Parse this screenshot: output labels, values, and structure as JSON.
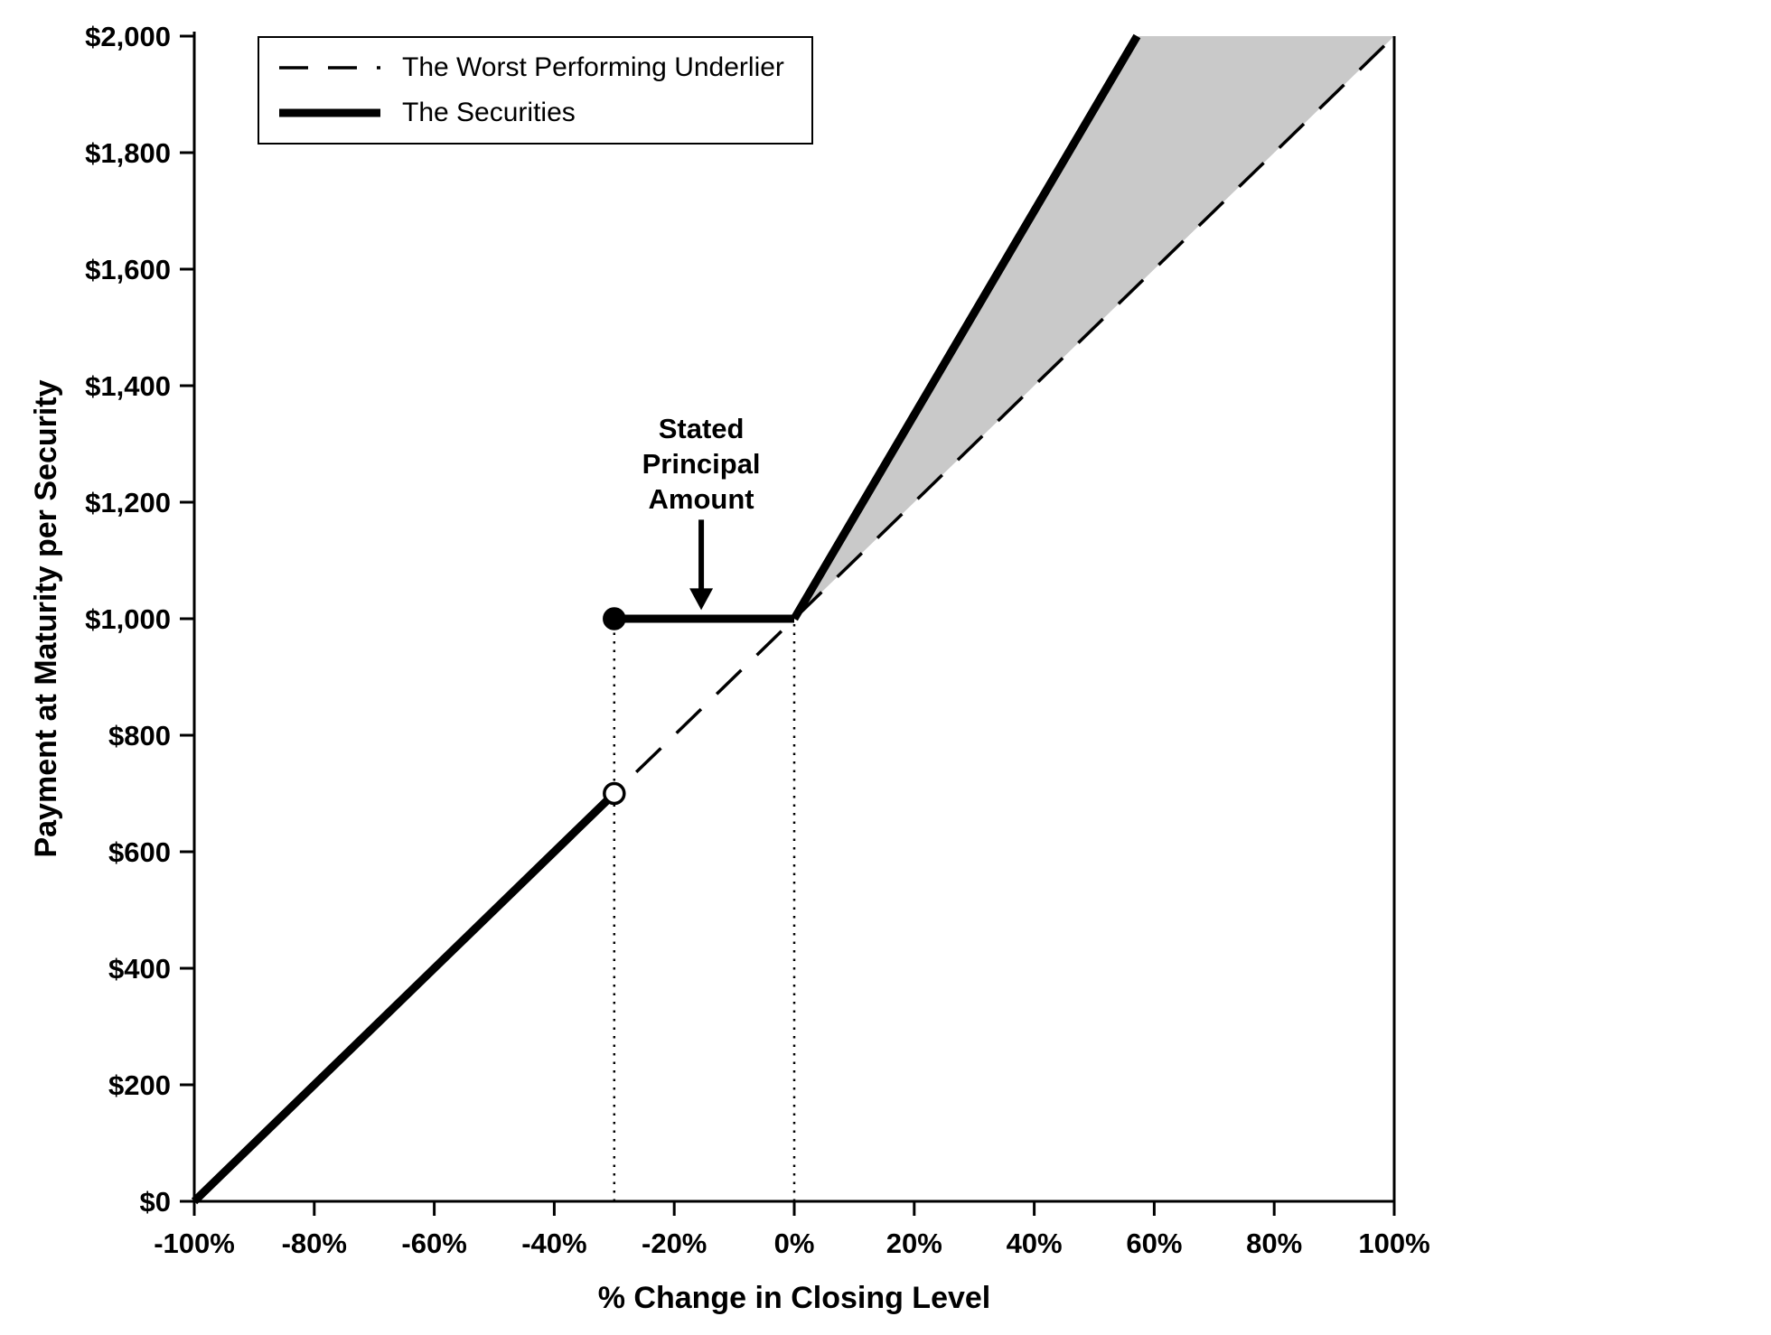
{
  "chart_data": {
    "type": "line",
    "title": "",
    "xlabel": "% Change in Closing Level",
    "ylabel": "Payment at Maturity per Security",
    "xlim": [
      -100,
      100
    ],
    "ylim": [
      0,
      2000
    ],
    "grid": false,
    "x_ticks": [
      {
        "value": -100,
        "label": "-100%"
      },
      {
        "value": -80,
        "label": "-80%"
      },
      {
        "value": -60,
        "label": "-60%"
      },
      {
        "value": -40,
        "label": "-40%"
      },
      {
        "value": -20,
        "label": "-20%"
      },
      {
        "value": 0,
        "label": "0%"
      },
      {
        "value": 20,
        "label": "20%"
      },
      {
        "value": 40,
        "label": "40%"
      },
      {
        "value": 60,
        "label": "60%"
      },
      {
        "value": 80,
        "label": "80%"
      },
      {
        "value": 100,
        "label": "100%"
      }
    ],
    "y_ticks": [
      {
        "value": 0,
        "label": "$0"
      },
      {
        "value": 200,
        "label": "$200"
      },
      {
        "value": 400,
        "label": "$400"
      },
      {
        "value": 600,
        "label": "$600"
      },
      {
        "value": 800,
        "label": "$800"
      },
      {
        "value": 1000,
        "label": "$1,000"
      },
      {
        "value": 1200,
        "label": "$1,200"
      },
      {
        "value": 1400,
        "label": "$1,400"
      },
      {
        "value": 1600,
        "label": "$1,600"
      },
      {
        "value": 1800,
        "label": "$1,800"
      },
      {
        "value": 2000,
        "label": "$2,000"
      }
    ],
    "legend": {
      "position": "top-left",
      "entries": [
        {
          "name": "The Worst Performing Underlier",
          "style": "dashed"
        },
        {
          "name": "The Securities",
          "style": "solid-thick"
        }
      ]
    },
    "series": [
      {
        "name": "The Worst Performing Underlier",
        "style": "dashed",
        "points": [
          [
            -100,
            0
          ],
          [
            100,
            2000
          ]
        ]
      },
      {
        "name": "The Securities",
        "style": "solid-thick",
        "segments": [
          [
            [
              -100,
              0
            ],
            [
              -30,
              700
            ]
          ],
          [
            [
              -30,
              1000
            ],
            [
              0,
              1000
            ]
          ],
          [
            [
              0,
              1000
            ],
            [
              57.14,
              2000
            ]
          ]
        ]
      }
    ],
    "markers": [
      {
        "x": -30,
        "y": 700,
        "type": "open-circle"
      },
      {
        "x": -30,
        "y": 1000,
        "type": "filled-circle"
      }
    ],
    "reference_lines": [
      {
        "style": "dotted-vertical",
        "x": -30,
        "y_from": 0,
        "y_to": 1000
      },
      {
        "style": "dotted-vertical",
        "x": 0,
        "y_from": 0,
        "y_to": 1000
      }
    ],
    "shaded_region": {
      "color": "#c9c9c9",
      "vertices": [
        [
          0,
          1000
        ],
        [
          57.14,
          2000
        ],
        [
          100,
          2000
        ]
      ]
    },
    "annotation": {
      "lines": [
        "Stated",
        "Principal",
        "Amount"
      ],
      "x": -15.5,
      "text_top_value": 1310,
      "arrow_from_value": 1170,
      "arrow_to_value": 1015
    },
    "line_color": "#000000"
  }
}
